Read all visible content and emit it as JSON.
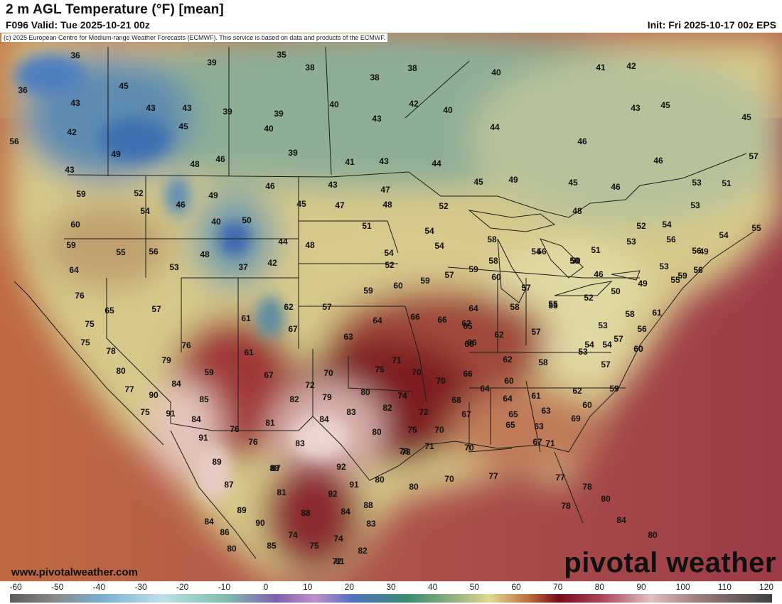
{
  "header": {
    "title": "2 m AGL Temperature (°F) [mean]",
    "valid": "F096 Valid: Tue 2025-10-21 00z",
    "init": "Init: Fri 2025-10-17 00z EPS",
    "credit": "(c) 2025 European Centre for Medium-range Weather Forecasts (ECMWF). This service is based on data and products of the ECMWF."
  },
  "footer": {
    "website": "www.pivotalweather.com",
    "brand": "pivotal weather"
  },
  "colorbar": {
    "ticks": [
      "-60",
      "-50",
      "-40",
      "-30",
      "-20",
      "-10",
      "0",
      "10",
      "20",
      "30",
      "40",
      "50",
      "60",
      "70",
      "80",
      "90",
      "100",
      "110",
      "120"
    ]
  },
  "colors": {
    "ocean_warm": "#a04848",
    "ocean_cool": "#c08050",
    "land_cold": "#4f8bb5",
    "land_cool": "#8fae8e",
    "land_mild": "#d8cf90",
    "land_warm": "#c88860",
    "land_hot": "#8c1f2a",
    "land_very_hot": "#e8c8c0"
  },
  "map_values": [
    {
      "v": "36"
    },
    {
      "v": "36"
    },
    {
      "v": "45"
    },
    {
      "v": "43"
    },
    {
      "v": "42"
    },
    {
      "v": "56"
    },
    {
      "v": "49"
    },
    {
      "v": "43"
    },
    {
      "v": "43"
    },
    {
      "v": "43"
    },
    {
      "v": "45"
    },
    {
      "v": "39"
    },
    {
      "v": "39"
    },
    {
      "v": "35"
    },
    {
      "v": "38"
    },
    {
      "v": "38"
    },
    {
      "v": "38"
    },
    {
      "v": "39"
    },
    {
      "v": "40"
    },
    {
      "v": "39"
    },
    {
      "v": "48"
    },
    {
      "v": "46"
    },
    {
      "v": "40"
    },
    {
      "v": "43"
    },
    {
      "v": "42"
    },
    {
      "v": "40"
    },
    {
      "v": "40"
    },
    {
      "v": "44"
    },
    {
      "v": "41"
    },
    {
      "v": "43"
    },
    {
      "v": "44"
    },
    {
      "v": "41"
    },
    {
      "v": "42"
    },
    {
      "v": "43"
    },
    {
      "v": "45"
    },
    {
      "v": "45"
    },
    {
      "v": "46"
    },
    {
      "v": "46"
    },
    {
      "v": "57"
    },
    {
      "v": "59"
    },
    {
      "v": "52"
    },
    {
      "v": "54"
    },
    {
      "v": "46"
    },
    {
      "v": "49"
    },
    {
      "v": "46"
    },
    {
      "v": "43"
    },
    {
      "v": "47"
    },
    {
      "v": "45"
    },
    {
      "v": "47"
    },
    {
      "v": "48"
    },
    {
      "v": "60"
    },
    {
      "v": "59"
    },
    {
      "v": "55"
    },
    {
      "v": "56"
    },
    {
      "v": "48"
    },
    {
      "v": "40"
    },
    {
      "v": "50"
    },
    {
      "v": "44"
    },
    {
      "v": "48"
    },
    {
      "v": "51"
    },
    {
      "v": "52"
    },
    {
      "v": "54"
    },
    {
      "v": "54"
    },
    {
      "v": "54"
    },
    {
      "v": "52"
    },
    {
      "v": "45"
    },
    {
      "v": "49"
    },
    {
      "v": "48"
    },
    {
      "v": "45"
    },
    {
      "v": "46"
    },
    {
      "v": "53"
    },
    {
      "v": "51"
    },
    {
      "v": "53"
    },
    {
      "v": "52"
    },
    {
      "v": "54"
    },
    {
      "v": "54"
    },
    {
      "v": "55"
    },
    {
      "v": "64"
    },
    {
      "v": "53"
    },
    {
      "v": "37"
    },
    {
      "v": "42"
    },
    {
      "v": "56"
    },
    {
      "v": "49"
    },
    {
      "v": "58"
    },
    {
      "v": "54"
    },
    {
      "v": "56"
    },
    {
      "v": "50"
    },
    {
      "v": "51"
    },
    {
      "v": "53"
    },
    {
      "v": "56"
    },
    {
      "v": "59"
    },
    {
      "v": "76"
    },
    {
      "v": "65"
    },
    {
      "v": "57"
    },
    {
      "v": "61"
    },
    {
      "v": "62"
    },
    {
      "v": "57"
    },
    {
      "v": "59"
    },
    {
      "v": "60"
    },
    {
      "v": "59"
    },
    {
      "v": "57"
    },
    {
      "v": "59"
    },
    {
      "v": "58"
    },
    {
      "v": "60"
    },
    {
      "v": "57"
    },
    {
      "v": "55"
    },
    {
      "v": "50"
    },
    {
      "v": "46"
    },
    {
      "v": "50"
    },
    {
      "v": "49"
    },
    {
      "v": "53"
    },
    {
      "v": "56"
    },
    {
      "v": "55"
    },
    {
      "v": "58"
    },
    {
      "v": "56"
    },
    {
      "v": "61"
    },
    {
      "v": "75"
    },
    {
      "v": "75"
    },
    {
      "v": "67"
    },
    {
      "v": "76"
    },
    {
      "v": "63"
    },
    {
      "v": "64"
    },
    {
      "v": "66"
    },
    {
      "v": "66"
    },
    {
      "v": "62"
    },
    {
      "v": "64"
    },
    {
      "v": "58"
    },
    {
      "v": "55"
    },
    {
      "v": "52"
    },
    {
      "v": "53"
    },
    {
      "v": "57"
    },
    {
      "v": "54"
    },
    {
      "v": "65"
    },
    {
      "v": "62"
    },
    {
      "v": "57"
    },
    {
      "v": "66"
    },
    {
      "v": "61"
    },
    {
      "v": "54"
    },
    {
      "v": "60"
    },
    {
      "v": "78"
    },
    {
      "v": "80"
    },
    {
      "v": "79"
    },
    {
      "v": "59"
    },
    {
      "v": "67"
    },
    {
      "v": "70"
    },
    {
      "v": "75"
    },
    {
      "v": "71"
    },
    {
      "v": "70"
    },
    {
      "v": "66"
    },
    {
      "v": "62"
    },
    {
      "v": "58"
    },
    {
      "v": "53"
    },
    {
      "v": "57"
    },
    {
      "v": "60"
    },
    {
      "v": "66"
    },
    {
      "v": "77"
    },
    {
      "v": "90"
    },
    {
      "v": "84"
    },
    {
      "v": "72"
    },
    {
      "v": "79"
    },
    {
      "v": "80"
    },
    {
      "v": "74"
    },
    {
      "v": "70"
    },
    {
      "v": "64"
    },
    {
      "v": "60"
    },
    {
      "v": "64"
    },
    {
      "v": "61"
    },
    {
      "v": "62"
    },
    {
      "v": "59"
    },
    {
      "v": "60"
    },
    {
      "v": "75"
    },
    {
      "v": "91"
    },
    {
      "v": "85"
    },
    {
      "v": "82"
    },
    {
      "v": "83"
    },
    {
      "v": "82"
    },
    {
      "v": "72"
    },
    {
      "v": "68"
    },
    {
      "v": "67"
    },
    {
      "v": "65"
    },
    {
      "v": "63"
    },
    {
      "v": "63"
    },
    {
      "v": "84"
    },
    {
      "v": "76"
    },
    {
      "v": "81"
    },
    {
      "v": "84"
    },
    {
      "v": "91"
    },
    {
      "v": "76"
    },
    {
      "v": "83"
    },
    {
      "v": "80"
    },
    {
      "v": "75"
    },
    {
      "v": "70"
    },
    {
      "v": "65"
    },
    {
      "v": "69"
    },
    {
      "v": "67"
    },
    {
      "v": "71"
    },
    {
      "v": "78"
    },
    {
      "v": "70"
    },
    {
      "v": "89"
    },
    {
      "v": "88"
    },
    {
      "v": "92"
    },
    {
      "v": "87"
    },
    {
      "v": "87"
    },
    {
      "v": "81"
    },
    {
      "v": "92"
    },
    {
      "v": "91"
    },
    {
      "v": "80"
    },
    {
      "v": "80"
    },
    {
      "v": "78"
    },
    {
      "v": "77"
    },
    {
      "v": "71"
    },
    {
      "v": "77"
    },
    {
      "v": "78"
    },
    {
      "v": "89"
    },
    {
      "v": "88"
    },
    {
      "v": "84"
    },
    {
      "v": "88"
    },
    {
      "v": "70"
    },
    {
      "v": "80"
    },
    {
      "v": "78"
    },
    {
      "v": "84"
    },
    {
      "v": "86"
    },
    {
      "v": "90"
    },
    {
      "v": "83"
    },
    {
      "v": "74"
    },
    {
      "v": "74"
    },
    {
      "v": "80"
    },
    {
      "v": "84"
    },
    {
      "v": "85"
    },
    {
      "v": "75"
    },
    {
      "v": "82"
    },
    {
      "v": "81"
    },
    {
      "v": "72"
    },
    {
      "v": "80"
    }
  ]
}
